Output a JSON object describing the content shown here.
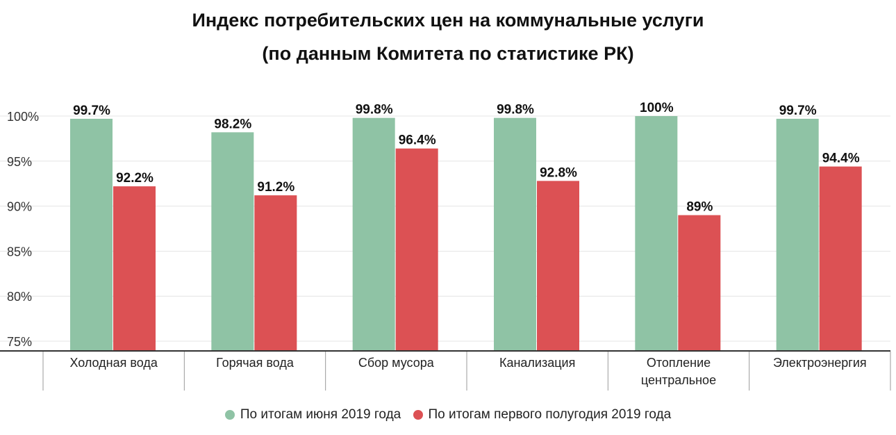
{
  "chart_data": {
    "type": "bar",
    "title": "Индекс потребительских цен на коммунальные услуги",
    "subtitle": "(по данным Комитета по статистике РК)",
    "categories": [
      [
        "Холодная вода"
      ],
      [
        "Горячая вода"
      ],
      [
        "Сбор мусора"
      ],
      [
        "Канализация"
      ],
      [
        "Отопление",
        "центральное"
      ],
      [
        "Электроэнергия"
      ]
    ],
    "series": [
      {
        "name": "По итогам июня 2019 года",
        "color": "#8fc3a5",
        "values": [
          99.7,
          98.2,
          99.8,
          99.8,
          100,
          99.7
        ],
        "labels": [
          "99.7%",
          "98.2%",
          "99.8%",
          "99.8%",
          "100%",
          "99.7%"
        ]
      },
      {
        "name": "По итогам первого полугодия 2019 года",
        "color": "#dc5154",
        "values": [
          92.2,
          91.2,
          96.4,
          92.8,
          89,
          94.4
        ],
        "labels": [
          "92.2%",
          "91.2%",
          "96.4%",
          "92.8%",
          "89%",
          "94.4%"
        ]
      }
    ],
    "y_ticks": [
      "100%",
      "95%",
      "90%",
      "85%",
      "80%",
      "75%"
    ],
    "y_tick_values": [
      100,
      95,
      90,
      85,
      80,
      75
    ],
    "ylim": [
      74,
      101
    ],
    "grid": true,
    "legend_position": "bottom-center"
  }
}
